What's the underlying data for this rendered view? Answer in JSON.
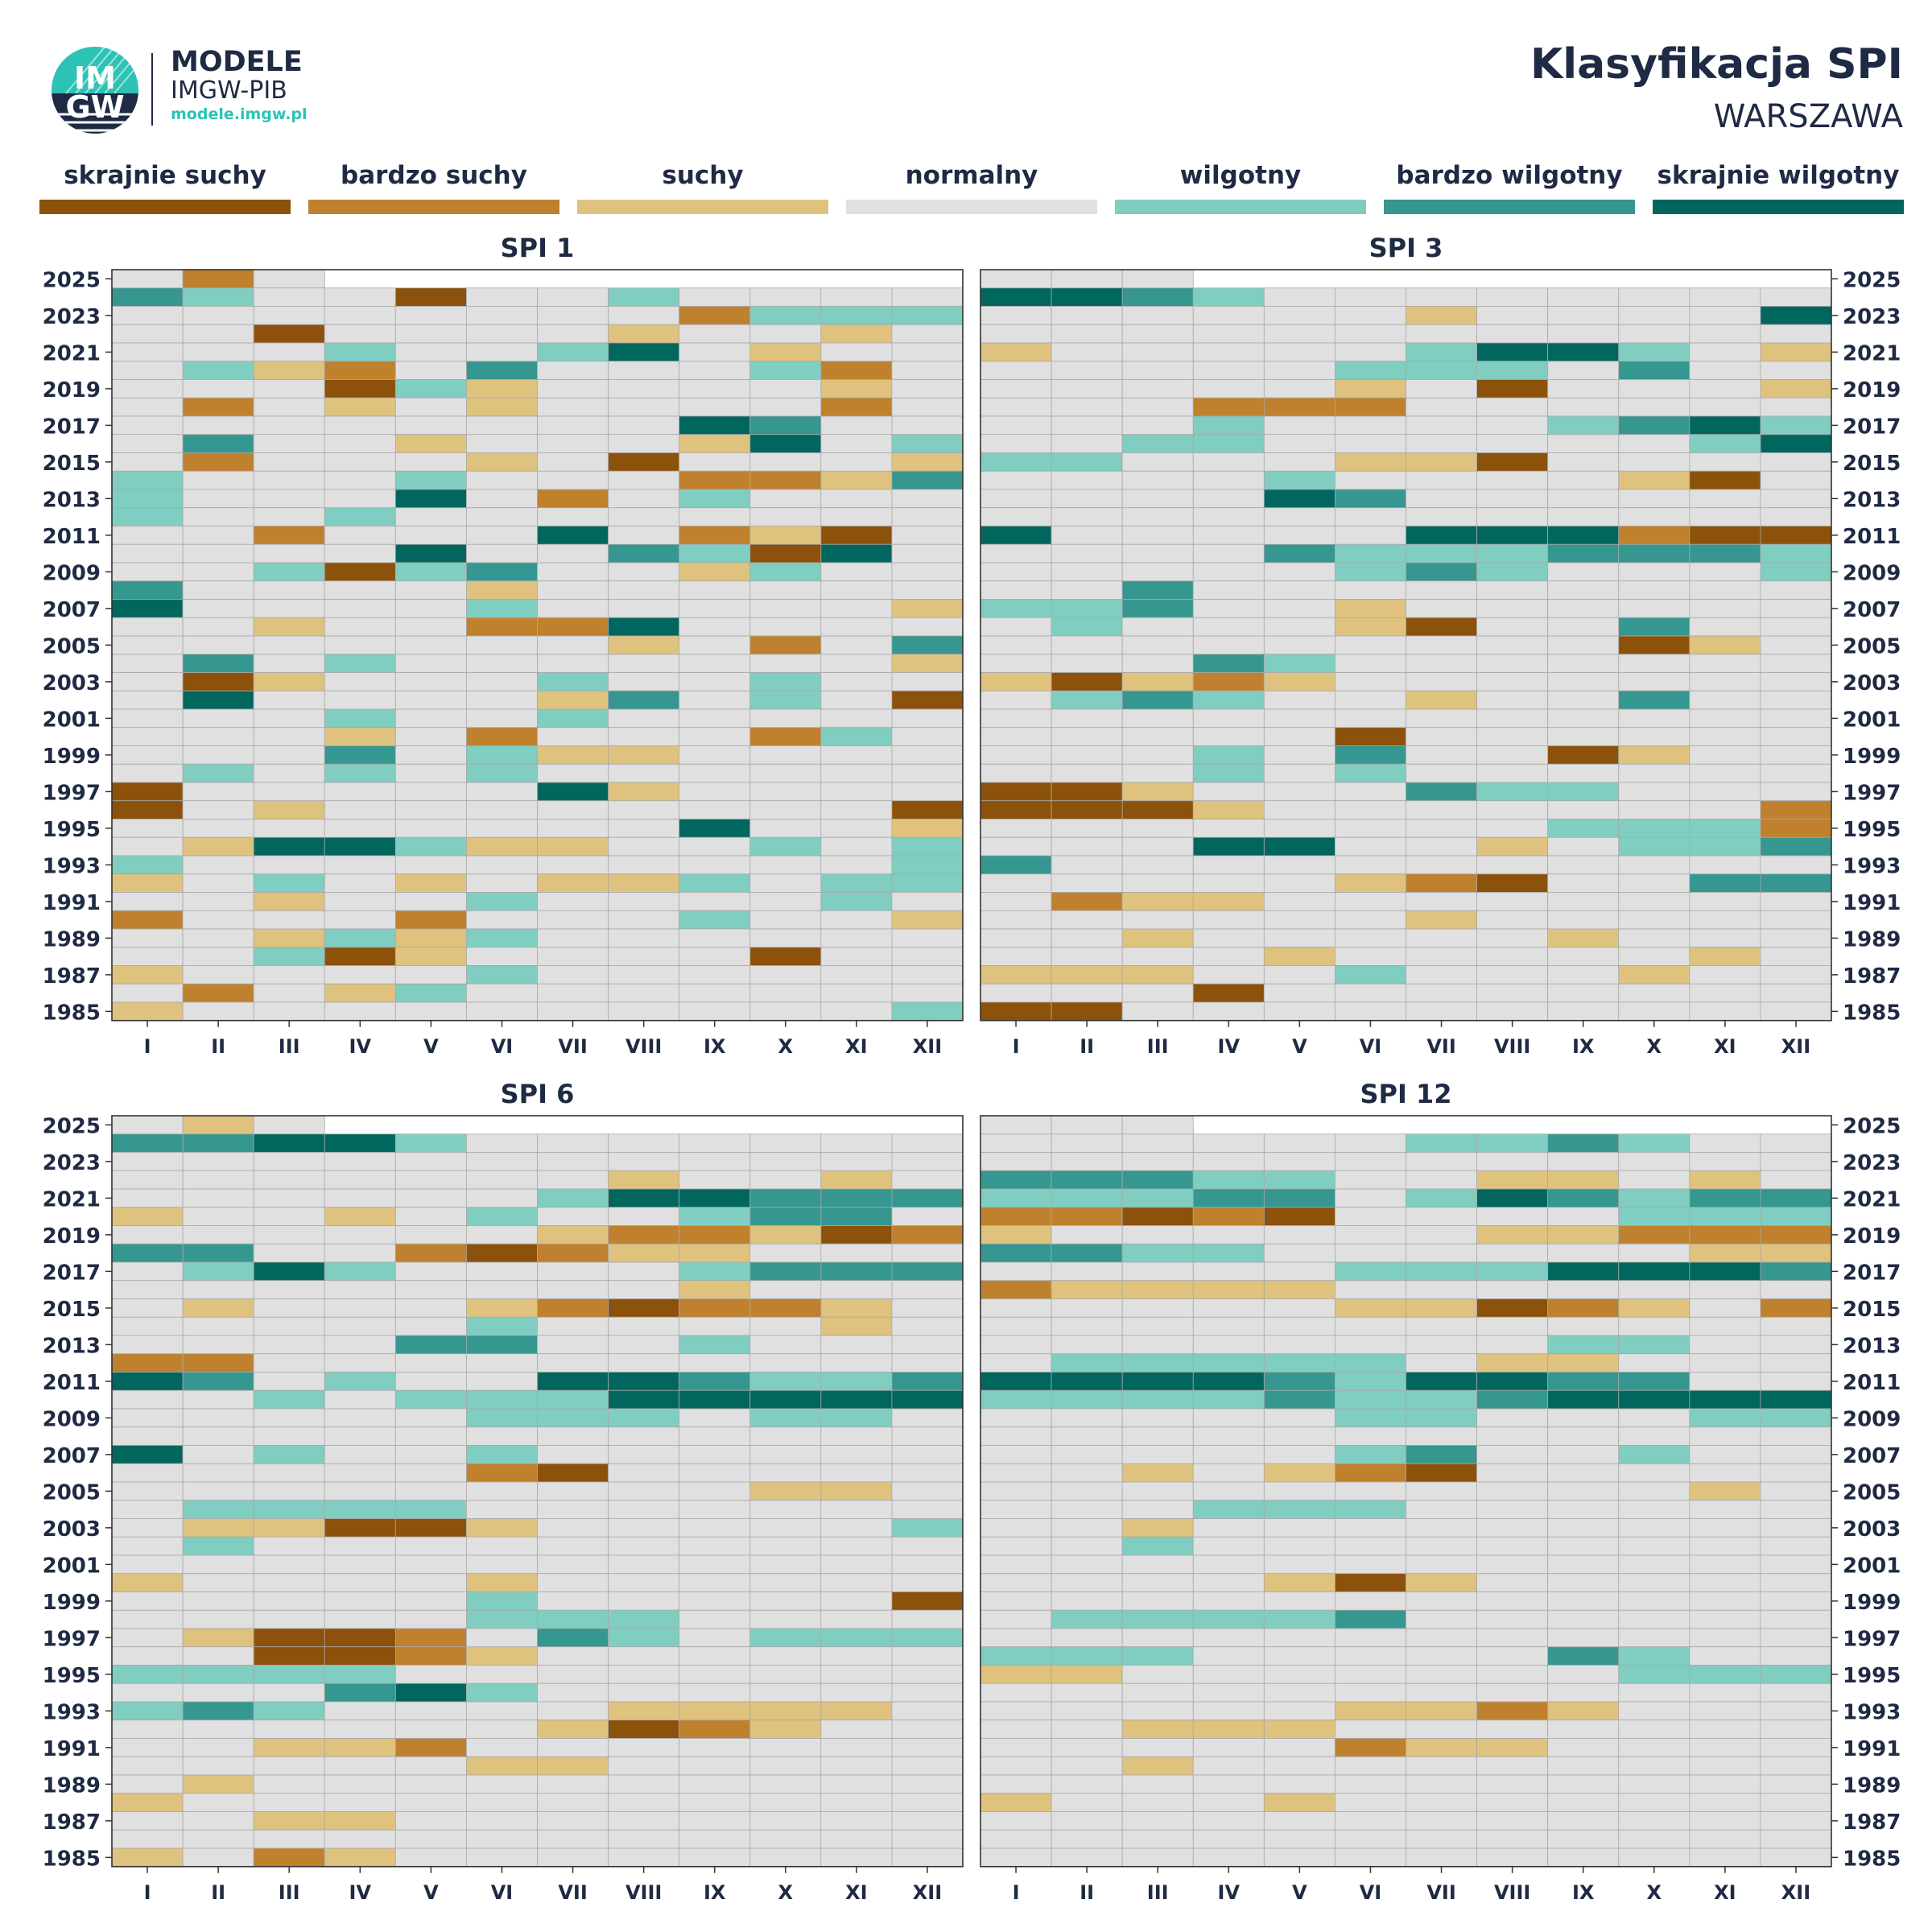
{
  "header": {
    "brand_line1": "MODELE",
    "brand_line2": "IMGW-PIB",
    "brand_url": "modele.imgw.pl",
    "logo_text_top": "IM",
    "logo_text_bottom": "GW",
    "title": "Klasyfikacja SPI",
    "subtitle": "WARSZAWA"
  },
  "legend": [
    {
      "label": "skrajnie suchy",
      "color": "#8c510a"
    },
    {
      "label": "bardzo suchy",
      "color": "#bf812d"
    },
    {
      "label": "suchy",
      "color": "#dfc27d"
    },
    {
      "label": "normalny",
      "color": "#e0e0e0"
    },
    {
      "label": "wilgotny",
      "color": "#80cdc1"
    },
    {
      "label": "bardzo wilgotny",
      "color": "#35978f"
    },
    {
      "label": "skrajnie wilgotny",
      "color": "#01665e"
    }
  ],
  "chart_data": [
    {
      "type": "heatmap",
      "title": "SPI 1",
      "x": [
        "I",
        "II",
        "III",
        "IV",
        "V",
        "VI",
        "VII",
        "VIII",
        "IX",
        "X",
        "XI",
        "XII"
      ],
      "y_first_year": 1985,
      "y_last_year": 2025,
      "y_tick_labels": [
        "2025",
        "2023",
        "2021",
        "2019",
        "2017",
        "2015",
        "2013",
        "2011",
        "2009",
        "2007",
        "2005",
        "2003",
        "2001",
        "1999",
        "1997",
        "1995",
        "1993",
        "1991",
        "1989",
        "1987",
        "1985"
      ],
      "category_scale": {
        "-3": "skrajnie suchy",
        "-2": "bardzo suchy",
        "-1": "suchy",
        "0": "normalny",
        "1": "wilgotny",
        "2": "bardzo wilgotny",
        "3": "skrajnie wilgotny"
      },
      "rows_top_to_bottom": [
        "0 -2 0 . . . . . . . . .",
        "2 1 0 0 -3 0 0 1 0 0 0 0",
        "0 0 0 0 0 0 0 0 -2 1 1 1",
        "0 0 -3 0 0 0 0 -1 0 0 -1 0",
        "0 0 0 1 0 0 1 3 0 -1 0 0",
        "0 1 -1 -2 0 2 0 0 0 1 -2 0",
        "0 0 0 -3 1 -1 0 0 0 0 -1 0",
        "0 -2 0 -1 0 -1 0 0 0 0 -2 0",
        "0 0 0 0 0 0 0 0 3 2 0 0",
        "0 2 0 0 -1 0 0 0 -1 3 0 1",
        "0 -2 0 0 0 -1 0 -3 0 0 0 -1",
        "1 0 0 0 1 0 0 0 -2 -2 -1 2",
        "1 0 0 0 3 0 -2 0 1 0 0 0",
        "1 0 0 1 0 0 0 0 0 0 0 0",
        "0 0 -2 0 0 0 3 0 -2 -1 -3 0",
        "0 0 0 0 3 0 0 2 1 -3 3 0",
        "0 0 1 -3 1 2 0 0 -1 1 0 0",
        "2 0 0 0 0 -1 0 0 0 0 0 0",
        "3 0 0 0 0 1 0 0 0 0 0 -1",
        "0 0 -1 0 0 -2 -2 3 0 0 0 0",
        "0 0 0 0 0 0 0 -1 0 -2 0 2",
        "0 2 0 1 0 0 0 0 0 0 0 -1",
        "0 -3 -1 0 0 0 1 0 0 1 0 0",
        "0 3 0 0 0 0 -1 2 0 1 0 -3",
        "0 0 0 1 0 0 1 0 0 0 0 0",
        "0 0 0 -1 0 -2 0 0 0 -2 1 0",
        "0 0 0 2 0 1 -1 -1 0 0 0 0",
        "0 1 0 1 0 1 0 0 0 0 0 0",
        "-3 0 0 0 0 0 3 -1 0 0 0 0",
        "-3 0 -1 0 0 0 0 0 0 0 0 -3",
        "0 0 0 0 0 0 0 0 3 0 0 -1",
        "0 -1 3 3 1 -1 -1 0 0 1 0 1",
        "1 0 0 0 0 0 0 0 0 0 0 1",
        "-1 0 1 0 -1 0 -1 -1 1 0 1 1",
        "0 0 -1 0 0 1 0 0 0 0 1 0",
        "-2 0 0 0 -2 0 0 0 1 0 0 -1",
        "0 0 -1 1 -1 1 0 0 0 0 0 0",
        "0 0 1 -3 -1 0 0 0 0 -3 0 0",
        "-1 0 0 0 0 1 0 0 0 0 0 0",
        "0 -2 0 -1 1 0 0 0 0 0 0 0",
        "-1 0 0 0 0 0 0 0 0 0 0 1"
      ]
    },
    {
      "type": "heatmap",
      "title": "SPI 3",
      "x": [
        "I",
        "II",
        "III",
        "IV",
        "V",
        "VI",
        "VII",
        "VIII",
        "IX",
        "X",
        "XI",
        "XII"
      ],
      "y_first_year": 1985,
      "y_last_year": 2025,
      "y_tick_labels": [
        "2025",
        "2023",
        "2021",
        "2019",
        "2017",
        "2015",
        "2013",
        "2011",
        "2009",
        "2007",
        "2005",
        "2003",
        "2001",
        "1999",
        "1997",
        "1995",
        "1993",
        "1991",
        "1989",
        "1987",
        "1985"
      ],
      "category_scale": {
        "-3": "skrajnie suchy",
        "-2": "bardzo suchy",
        "-1": "suchy",
        "0": "normalny",
        "1": "wilgotny",
        "2": "bardzo wilgotny",
        "3": "skrajnie wilgotny"
      },
      "rows_top_to_bottom": [
        "0 0 0 . . . . . . . . .",
        "3 3 2 1 0 0 0 0 0 0 0 0",
        "0 0 0 0 0 0 -1 0 0 0 0 3",
        "0 0 0 0 0 0 0 0 0 0 0 0",
        "-1 0 0 0 0 0 1 3 3 1 0 -1",
        "0 0 0 0 0 1 1 1 0 2 0 0",
        "0 0 0 0 0 -1 0 -3 0 0 0 -1",
        "0 0 0 -2 -2 -2 0 0 0 0 0 0",
        "0 0 0 1 0 0 0 0 1 2 3 1",
        "0 0 1 1 0 0 0 0 0 0 1 3",
        "1 1 0 0 0 -1 -1 -3 0 0 0 0",
        "0 0 0 0 1 0 0 0 0 -1 -3 0",
        "0 0 0 0 3 2 0 0 0 0 0 0",
        "0 0 0 0 0 0 0 0 0 0 0 0",
        "3 0 0 0 0 0 3 3 3 -2 -3 -3",
        "0 0 0 0 2 1 1 1 2 2 2 1",
        "0 0 0 0 0 1 2 1 0 0 0 1",
        "0 0 2 0 0 0 0 0 0 0 0 0",
        "1 1 2 0 0 -1 0 0 0 0 0 0",
        "0 1 0 0 0 -1 -3 0 0 2 0 0",
        "0 0 0 0 0 0 0 0 0 -3 -1 0",
        "0 0 0 2 1 0 0 0 0 0 0 0",
        "-1 -3 -1 -2 -1 0 0 0 0 0 0 0",
        "0 1 2 1 0 0 -1 0 0 2 0 0",
        "0 0 0 0 0 0 0 0 0 0 0 0",
        "0 0 0 0 0 -3 0 0 0 0 0 0",
        "0 0 0 1 0 2 0 0 -3 -1 0 0",
        "0 0 0 1 0 1 0 0 0 0 0 0",
        "-3 -3 -1 0 0 0 2 1 1 0 0 0",
        "-3 -3 -3 -1 0 0 0 0 0 0 0 -2",
        "0 0 0 0 0 0 0 0 1 1 1 -2",
        "0 0 0 3 3 0 0 -1 0 1 1 2",
        "2 0 0 0 0 0 0 0 0 0 0 0",
        "0 0 0 0 0 -1 -2 -3 0 0 2 2",
        "0 -2 -1 -1 0 0 0 0 0 0 0 0",
        "0 0 0 0 0 0 -1 0 0 0 0 0",
        "0 0 -1 0 0 0 0 0 -1 0 0 0",
        "0 0 0 0 -1 0 0 0 0 0 -1 0",
        "-1 -1 -1 0 0 1 0 0 0 -1 0 0",
        "0 0 0 -3 0 0 0 0 0 0 0 0",
        "-3 -3 0 0 0 0 0 0 0 0 0 0"
      ]
    },
    {
      "type": "heatmap",
      "title": "SPI 6",
      "x": [
        "I",
        "II",
        "III",
        "IV",
        "V",
        "VI",
        "VII",
        "VIII",
        "IX",
        "X",
        "XI",
        "XII"
      ],
      "y_first_year": 1985,
      "y_last_year": 2025,
      "y_tick_labels": [
        "2025",
        "2023",
        "2021",
        "2019",
        "2017",
        "2015",
        "2013",
        "2011",
        "2009",
        "2007",
        "2005",
        "2003",
        "2001",
        "1999",
        "1997",
        "1995",
        "1993",
        "1991",
        "1989",
        "1987",
        "1985"
      ],
      "category_scale": {
        "-3": "skrajnie suchy",
        "-2": "bardzo suchy",
        "-1": "suchy",
        "0": "normalny",
        "1": "wilgotny",
        "2": "bardzo wilgotny",
        "3": "skrajnie wilgotny"
      },
      "rows_top_to_bottom": [
        "0 -1 0 . . . . . . . . .",
        "2 2 3 3 1 0 0 0 0 0 0 0",
        "0 0 0 0 0 0 0 0 0 0 0 0",
        "0 0 0 0 0 0 0 -1 0 0 -1 0",
        "0 0 0 0 0 0 1 3 3 2 2 2",
        "-1 0 0 -1 0 1 0 0 1 2 2 0",
        "0 0 0 0 0 0 -1 -2 -2 -1 -3 -2",
        "2 2 0 0 -2 -3 -2 -1 -1 0 0 0",
        "0 1 3 1 0 0 0 0 1 2 2 2",
        "0 0 0 0 0 0 0 0 -1 0 0 0",
        "0 -1 0 0 0 -1 -2 -3 -2 -2 -1 0",
        "0 0 0 0 0 1 0 0 0 0 -1 0",
        "0 0 0 0 2 2 0 0 1 0 0 0",
        "-2 -2 0 0 0 0 0 0 0 0 0 0",
        "3 2 0 1 0 0 3 3 2 1 1 2",
        "0 0 1 0 1 1 1 3 3 3 3 3",
        "0 0 0 0 0 1 1 1 0 1 1 0",
        "0 0 0 0 0 0 0 0 0 0 0 0",
        "3 0 1 0 0 1 0 0 0 0 0 0",
        "0 0 0 0 0 -2 -3 0 0 0 0 0",
        "0 0 0 0 0 0 0 0 0 -1 -1 0",
        "0 1 1 1 1 0 0 0 0 0 0 0",
        "0 -1 -1 -3 -3 -1 0 0 0 0 0 1",
        "0 1 0 0 0 0 0 0 0 0 0 0",
        "0 0 0 0 0 0 0 0 0 0 0 0",
        "-1 0 0 0 0 -1 0 0 0 0 0 0",
        "0 0 0 0 0 1 0 0 0 0 0 -3",
        "0 0 0 0 0 1 1 1 0 0 0 0",
        "0 -1 -3 -3 -2 0 2 1 0 1 1 1",
        "0 0 -3 -3 -2 -1 0 0 0 0 0 0",
        "1 1 1 1 0 0 0 0 0 0 0 0",
        "0 0 0 2 3 1 0 0 0 0 0 0",
        "1 2 1 0 0 0 0 -1 -1 -1 -1 0",
        "0 0 0 0 0 0 -1 -3 -2 -1 0 0",
        "0 0 -1 -1 -2 0 0 0 0 0 0 0",
        "0 0 0 0 0 -1 -1 0 0 0 0 0",
        "0 -1 0 0 0 0 0 0 0 0 0 0",
        "-1 0 0 0 0 0 0 0 0 0 0 0",
        "0 0 -1 -1 0 0 0 0 0 0 0 0",
        "0 0 0 0 0 0 0 0 0 0 0 0",
        "-1 0 -2 -1 0 0 0 0 0 0 0 0"
      ]
    },
    {
      "type": "heatmap",
      "title": "SPI 12",
      "x": [
        "I",
        "II",
        "III",
        "IV",
        "V",
        "VI",
        "VII",
        "VIII",
        "IX",
        "X",
        "XI",
        "XII"
      ],
      "y_first_year": 1985,
      "y_last_year": 2025,
      "y_tick_labels": [
        "2025",
        "2023",
        "2021",
        "2019",
        "2017",
        "2015",
        "2013",
        "2011",
        "2009",
        "2007",
        "2005",
        "2003",
        "2001",
        "1999",
        "1997",
        "1995",
        "1993",
        "1991",
        "1989",
        "1987",
        "1985"
      ],
      "category_scale": {
        "-3": "skrajnie suchy",
        "-2": "bardzo suchy",
        "-1": "suchy",
        "0": "normalny",
        "1": "wilgotny",
        "2": "bardzo wilgotny",
        "3": "skrajnie wilgotny"
      },
      "rows_top_to_bottom": [
        "0 0 0 . . . . . . . . .",
        "0 0 0 0 0 0 1 1 2 1 0 0",
        "0 0 0 0 0 0 0 0 0 0 0 0",
        "2 2 2 1 1 0 0 -1 -1 0 -1 0",
        "1 1 1 2 2 0 1 3 2 1 2 2",
        "-2 -2 -3 -2 -3 0 0 0 0 1 1 1",
        "-1 0 0 0 0 0 0 -1 -1 -2 -2 -2",
        "2 2 1 1 0 0 0 0 0 0 -1 -1",
        "0 0 0 0 0 1 1 1 3 3 3 2",
        "-2 -1 -1 -1 -1 0 0 0 0 0 0 0",
        "0 0 0 0 0 -1 -1 -3 -2 -1 0 -2",
        "0 0 0 0 0 0 0 0 0 0 0 0",
        "0 0 0 0 0 0 0 0 1 1 0 0",
        "0 1 1 1 1 1 0 -1 -1 0 0 0",
        "3 3 3 3 2 1 3 3 2 2 0 0",
        "1 1 1 1 2 1 1 2 3 3 3 3",
        "0 0 0 0 0 1 1 0 0 0 1 1",
        "0 0 0 0 0 0 0 0 0 0 0 0",
        "0 0 0 0 0 1 2 0 0 1 0 0",
        "0 0 -1 0 -1 -2 -3 0 0 0 0 0",
        "0 0 0 0 0 0 0 0 0 0 -1 0",
        "0 0 0 1 1 1 0 0 0 0 0 0",
        "0 0 -1 0 0 0 0 0 0 0 0 0",
        "0 0 1 0 0 0 0 0 0 0 0 0",
        "0 0 0 0 0 0 0 0 0 0 0 0",
        "0 0 0 0 -1 -3 -1 0 0 0 0 0",
        "0 0 0 0 0 0 0 0 0 0 0 0",
        "0 1 1 1 1 2 0 0 0 0 0 0",
        "0 0 0 0 0 0 0 0 0 0 0 0",
        "1 1 1 0 0 0 0 0 2 1 0 0",
        "-1 -1 0 0 0 0 0 0 0 1 1 1",
        "0 0 0 0 0 0 0 0 0 0 0 0",
        "0 0 0 0 0 -1 -1 -2 -1 0 0 0",
        "0 0 -1 -1 -1 0 0 0 0 0 0 0",
        "0 0 0 0 0 -2 -1 -1 0 0 0 0",
        "0 0 -1 0 0 0 0 0 0 0 0 0",
        "0 0 0 0 0 0 0 0 0 0 0 0",
        "-1 0 0 0 -1 0 0 0 0 0 0 0",
        "0 0 0 0 0 0 0 0 0 0 0 0",
        "0 0 0 0 0 0 0 0 0 0 0 0",
        "0 0 0 0 0 0 0 0 0 0 0 0"
      ]
    }
  ]
}
